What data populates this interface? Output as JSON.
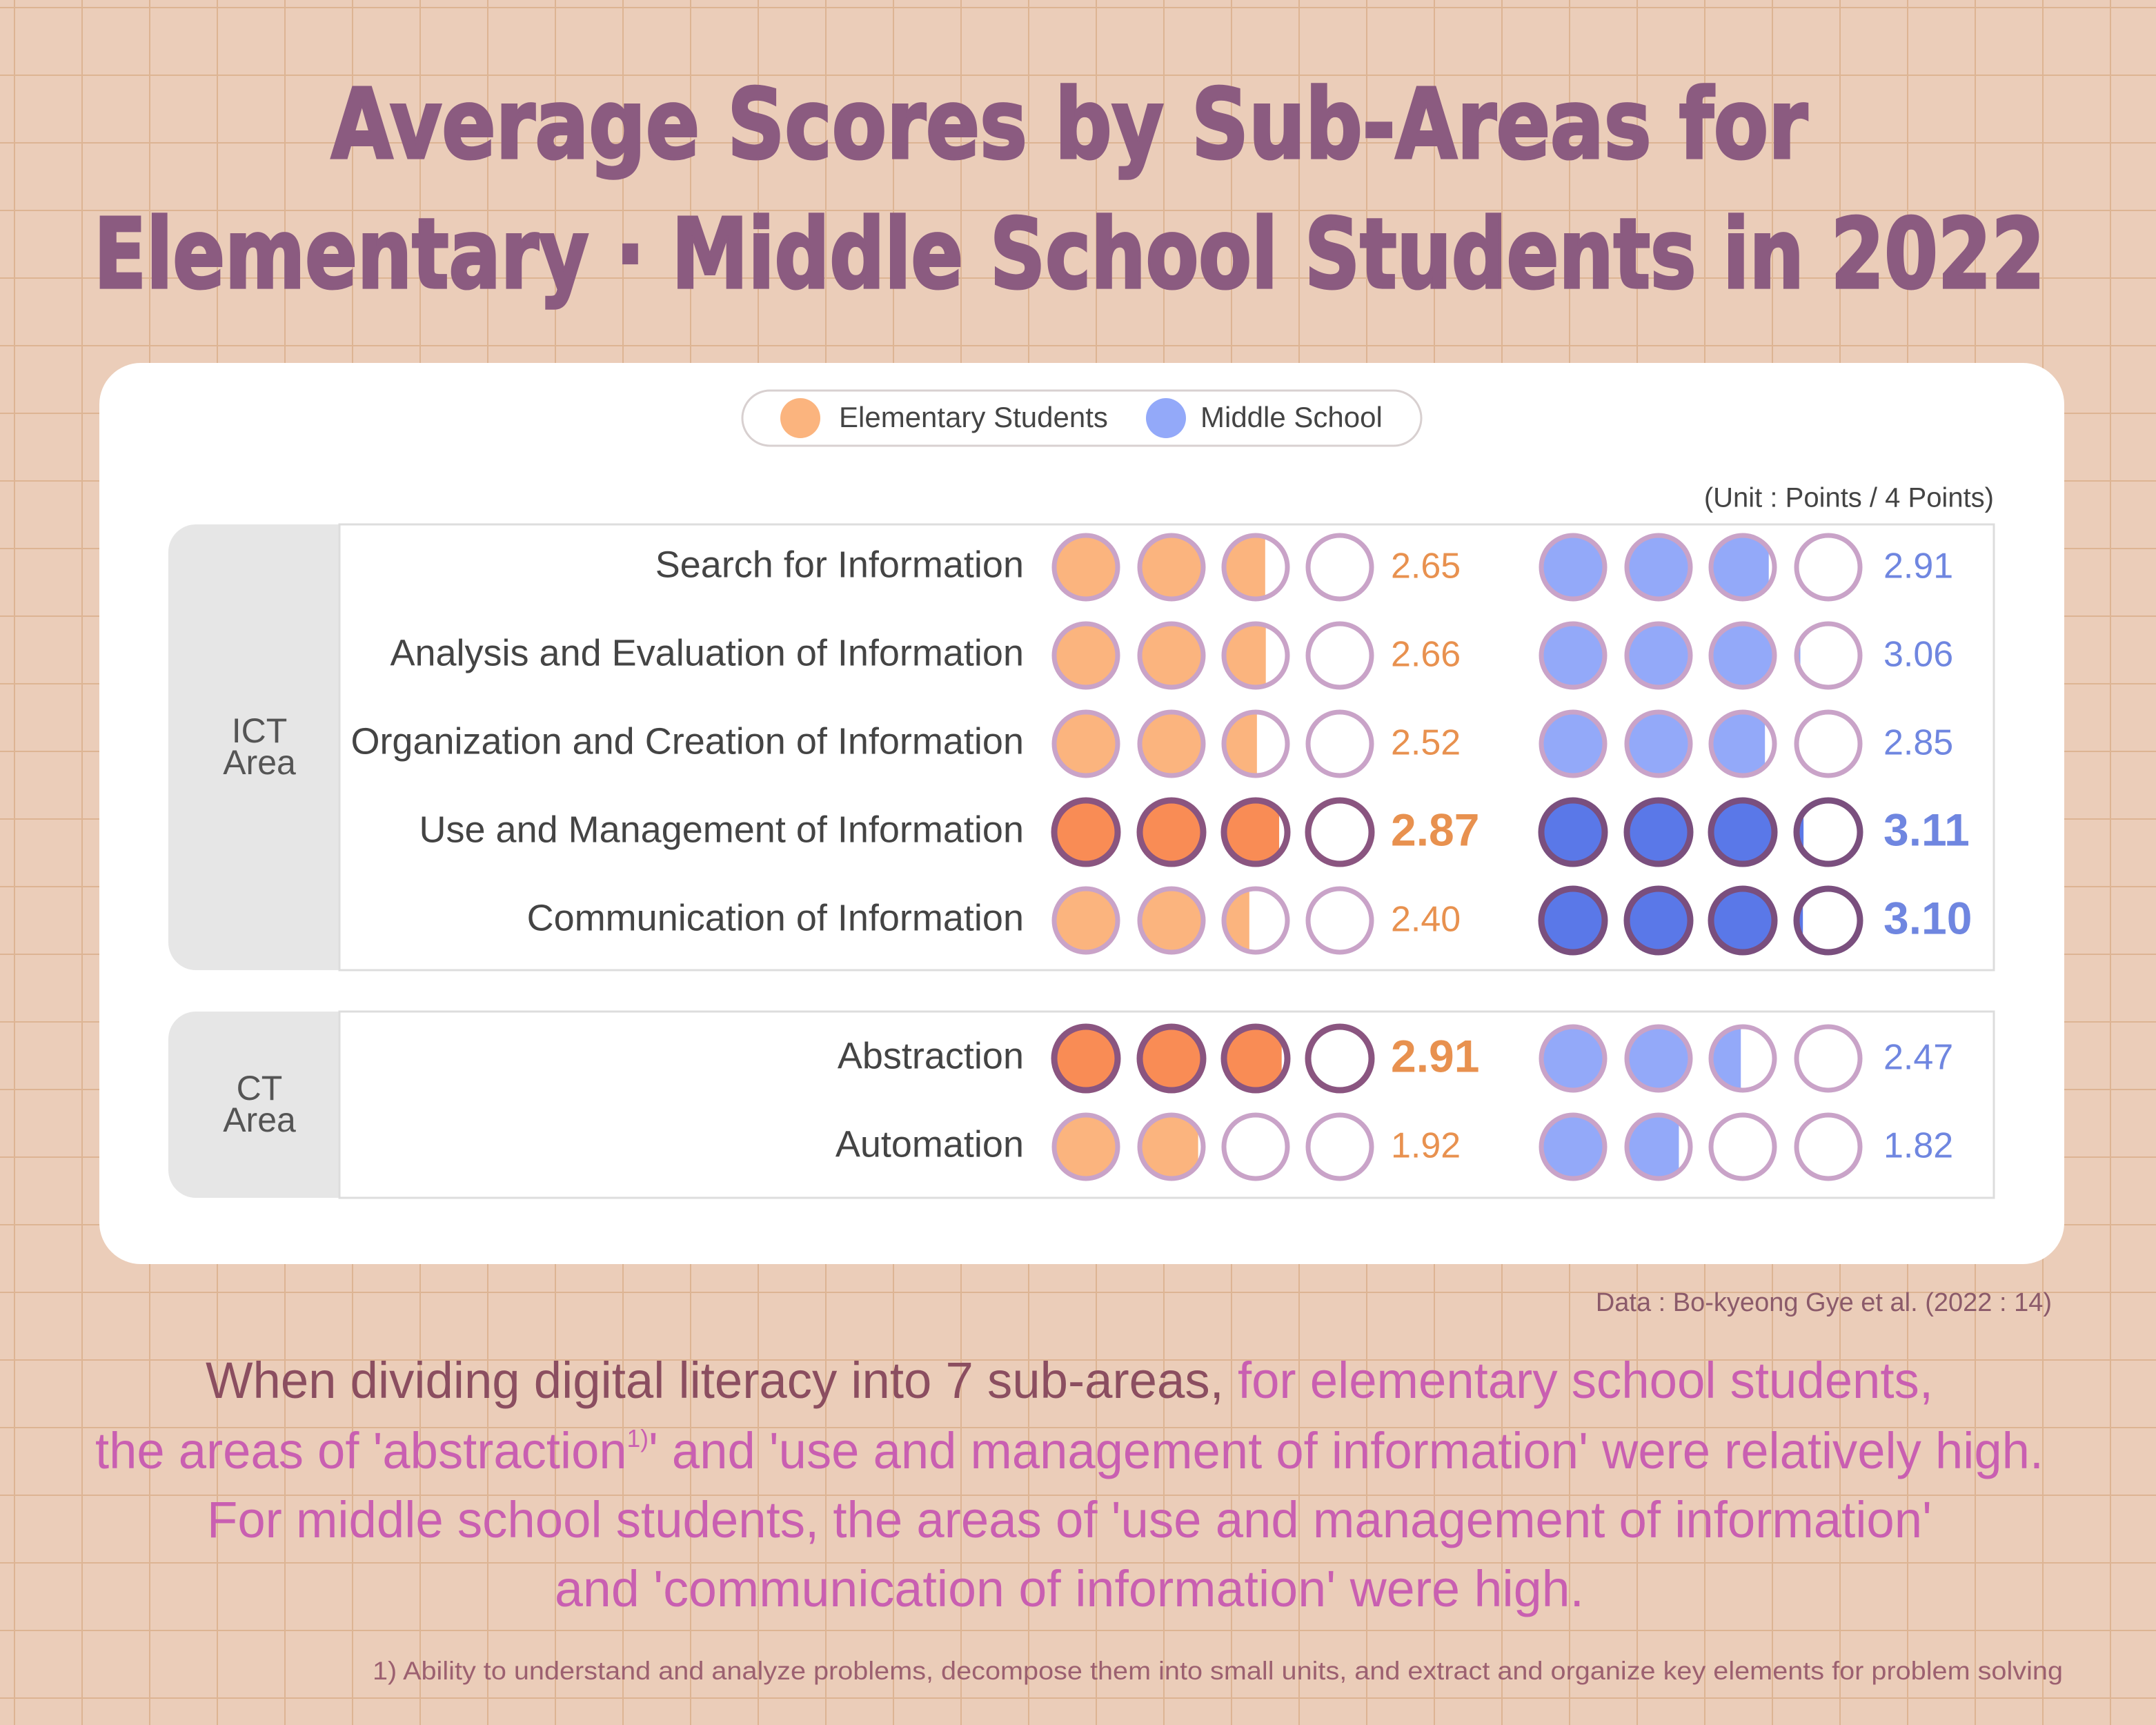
{
  "chart_data": {
    "type": "dot-rating",
    "title_lines": [
      "Average Scores by Sub-Areas for",
      "Elementary · Middle School Students in 2022"
    ],
    "unit": "(Unit : Points / 4 Points)",
    "xlim": [
      0,
      4
    ],
    "series": [
      {
        "name": "Elementary Students",
        "color": "#fbb47e",
        "highlight_color": "#f98c55"
      },
      {
        "name": "Middle School",
        "color": "#93a9f9",
        "highlight_color": "#5a78e8"
      }
    ],
    "groups": [
      {
        "label": "ICT Area",
        "rows": [
          {
            "name": "Search for Information",
            "values": [
              2.65,
              2.91
            ],
            "highlight": [
              false,
              false
            ]
          },
          {
            "name": "Analysis and Evaluation of Information",
            "values": [
              2.66,
              3.06
            ],
            "highlight": [
              false,
              false
            ]
          },
          {
            "name": "Organization and Creation of Information",
            "values": [
              2.52,
              2.85
            ],
            "highlight": [
              false,
              false
            ]
          },
          {
            "name": "Use and Management of Information",
            "values": [
              2.87,
              3.11
            ],
            "highlight": [
              true,
              true
            ]
          },
          {
            "name": "Communication of Information",
            "values": [
              2.4,
              3.1
            ],
            "value_labels": [
              "2.40",
              "3.10"
            ],
            "highlight": [
              false,
              true
            ]
          }
        ]
      },
      {
        "label": "CT Area",
        "rows": [
          {
            "name": "Abstraction",
            "values": [
              2.91,
              2.47
            ],
            "highlight": [
              true,
              false
            ]
          },
          {
            "name": "Automation",
            "values": [
              1.92,
              1.82
            ],
            "highlight": [
              false,
              false
            ]
          }
        ]
      }
    ],
    "source": "Data : Bo-kyeong Gye et al. (2022 : 14)",
    "summary": [
      [
        {
          "text": "When dividing digital literacy into 7 sub-areas, ",
          "emphasis": false
        },
        {
          "text": "for elementary school students,",
          "emphasis": true
        }
      ],
      [
        {
          "text": "the areas of 'abstraction",
          "emphasis": true
        },
        {
          "text": "1)",
          "emphasis": true,
          "sup": true
        },
        {
          "text": "' and 'use and management of information' were relatively high.",
          "emphasis": true
        }
      ],
      [
        {
          "text": "For middle school students, the areas of 'use and management of information'",
          "emphasis": true
        }
      ],
      [
        {
          "text": "and 'communication of information' were high.",
          "emphasis": true
        }
      ]
    ],
    "footnote": "1) Ability to understand and analyze problems, decompose them into small units, and extract and organize key elements for problem solving"
  }
}
